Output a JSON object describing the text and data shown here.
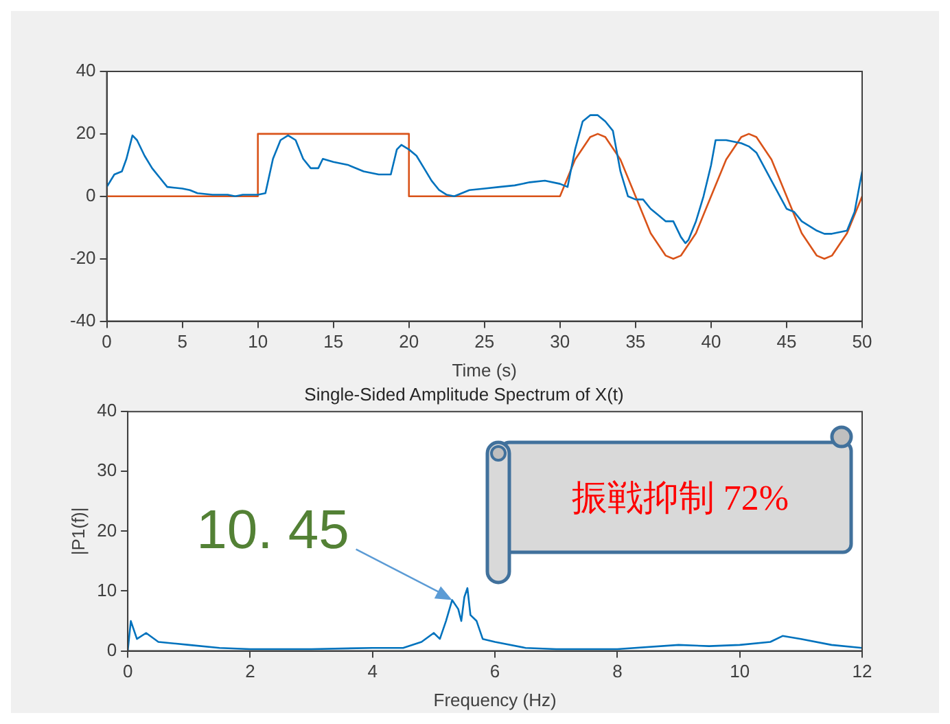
{
  "chart_data": [
    {
      "type": "line",
      "xlabel": "Time (s)",
      "xlim": [
        0,
        50
      ],
      "xticks": [
        0,
        5,
        10,
        15,
        20,
        25,
        30,
        35,
        40,
        45,
        50
      ],
      "ylim": [
        -40,
        40
      ],
      "yticks": [
        -40,
        -20,
        0,
        20,
        40
      ],
      "grid": false,
      "legend": false,
      "marker": "none",
      "series": [
        {
          "color": "#0072bd",
          "x": [
            0,
            0.5,
            1,
            1.3,
            1.7,
            2,
            2.5,
            3,
            3.5,
            4,
            5,
            5.5,
            6,
            7,
            8,
            8.5,
            9,
            10,
            10.5,
            11,
            11.5,
            12,
            12.5,
            13,
            13.5,
            14,
            14.3,
            15,
            16,
            17,
            18,
            18.8,
            19.2,
            19.5,
            20,
            20.5,
            21,
            21.5,
            22,
            22.5,
            23,
            24,
            25,
            26,
            27,
            28,
            29,
            30,
            30.5,
            31,
            31.5,
            32,
            32.5,
            33,
            33.5,
            34,
            34.5,
            35,
            35.5,
            36,
            36.5,
            37,
            37.5,
            38,
            38.3,
            38.5,
            39,
            39.5,
            40,
            40.3,
            41,
            42,
            42.5,
            43,
            44,
            45,
            45.5,
            46,
            47,
            47.5,
            48,
            49,
            49.5,
            50
          ],
          "values": [
            3,
            7,
            8,
            12,
            19.5,
            18,
            13,
            9,
            6,
            3,
            2.5,
            2,
            1,
            0.5,
            0.5,
            0,
            0.5,
            0.5,
            1,
            12,
            18,
            19.5,
            18,
            12,
            9,
            9,
            12,
            11,
            10,
            8,
            7,
            7,
            15,
            16.5,
            15,
            13,
            9,
            5,
            2,
            0.5,
            0,
            2,
            2.5,
            3,
            3.5,
            4.5,
            5,
            4,
            3,
            15,
            24,
            26,
            26,
            24,
            21,
            8,
            0,
            -1,
            -1,
            -4,
            -6,
            -8,
            -8,
            -13,
            -15,
            -14,
            -8,
            0,
            10,
            18,
            18,
            17,
            16,
            14,
            5,
            -4,
            -5,
            -8,
            -11,
            -12,
            -12,
            -11,
            -5,
            8
          ]
        },
        {
          "color": "#d95319",
          "x": [
            0,
            10,
            10,
            20,
            20,
            30,
            31,
            32,
            32.5,
            33,
            34,
            35,
            36,
            37,
            37.5,
            38,
            39,
            40,
            41,
            42,
            42.5,
            43,
            44,
            45,
            46,
            47,
            47.5,
            48,
            49,
            50
          ],
          "values": [
            0,
            0,
            20,
            20,
            0,
            0,
            11.8,
            19,
            20,
            19,
            11.8,
            0,
            -11.8,
            -19,
            -20,
            -19,
            -11.8,
            0,
            11.8,
            19,
            20,
            19,
            11.8,
            0,
            -11.8,
            -19,
            -20,
            -19,
            -11.8,
            0
          ]
        }
      ]
    },
    {
      "type": "line",
      "title": "Single-Sided Amplitude Spectrum of X(t)",
      "xlabel": "Frequency (Hz)",
      "ylabel": "|P1(f)|",
      "xlim": [
        0,
        12
      ],
      "xticks": [
        0,
        2,
        4,
        6,
        8,
        10,
        12
      ],
      "ylim": [
        0,
        40
      ],
      "yticks": [
        0,
        10,
        20,
        30,
        40
      ],
      "grid": false,
      "legend": false,
      "marker": "none",
      "annotations": [
        {
          "text": "10. 45",
          "x": 5.3,
          "y": 8.5
        },
        "振戦抑制 72%"
      ],
      "series": [
        {
          "color": "#0072bd",
          "x": [
            0,
            0.05,
            0.15,
            0.3,
            0.5,
            1,
            1.5,
            2,
            3,
            4,
            4.5,
            4.8,
            5,
            5.1,
            5.2,
            5.3,
            5.4,
            5.45,
            5.5,
            5.55,
            5.6,
            5.7,
            5.8,
            6,
            6.5,
            7,
            8,
            9,
            9.5,
            10,
            10.5,
            10.7,
            11,
            11.5,
            12
          ],
          "values": [
            0,
            5,
            2,
            3,
            1.5,
            1,
            0.5,
            0.3,
            0.3,
            0.5,
            0.5,
            1.5,
            3,
            2,
            5,
            8.5,
            7,
            5,
            9,
            10.5,
            6,
            5,
            2,
            1.5,
            0.5,
            0.3,
            0.3,
            1,
            0.8,
            1,
            1.5,
            2.5,
            2,
            1,
            0.5
          ]
        }
      ]
    }
  ]
}
